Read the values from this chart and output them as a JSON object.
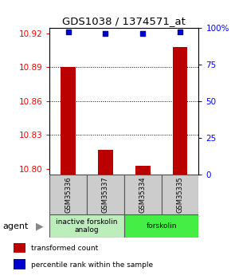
{
  "title": "GDS1038 / 1374571_at",
  "samples": [
    "GSM35336",
    "GSM35337",
    "GSM35334",
    "GSM35335"
  ],
  "red_values": [
    10.89,
    10.817,
    10.803,
    10.908
  ],
  "blue_values": [
    97,
    96,
    96,
    97
  ],
  "ylim_left": [
    10.795,
    10.925
  ],
  "ylim_right": [
    0,
    100
  ],
  "yticks_left": [
    10.8,
    10.83,
    10.86,
    10.89,
    10.92
  ],
  "yticks_right": [
    0,
    25,
    50,
    75,
    100
  ],
  "ytick_labels_right": [
    "0",
    "25",
    "50",
    "75",
    "100%"
  ],
  "groups": [
    {
      "label": "inactive forskolin\nanalog",
      "samples": [
        0,
        1
      ],
      "color": "#bbeebb"
    },
    {
      "label": "forskolin",
      "samples": [
        2,
        3
      ],
      "color": "#44ee44"
    }
  ],
  "agent_label": "agent",
  "bar_color": "#bb0000",
  "dot_color": "#0000cc",
  "bar_width": 0.4,
  "background_color": "#ffffff",
  "legend_items": [
    {
      "label": "transformed count",
      "color": "#bb0000"
    },
    {
      "label": "percentile rank within the sample",
      "color": "#0000cc"
    }
  ]
}
